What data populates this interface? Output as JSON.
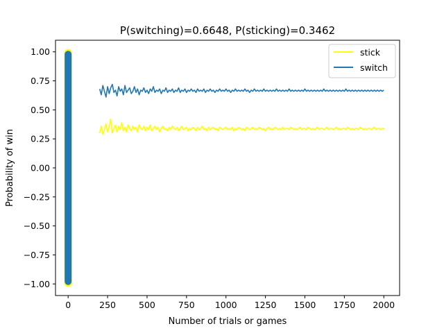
{
  "chart_data": {
    "type": "line",
    "title": "P(switching)=0.6648, P(sticking)=0.3462",
    "xlabel": "Number of trials or games",
    "ylabel": "Probability of win",
    "xlim": [
      -80,
      2100
    ],
    "ylim": [
      -1.1,
      1.1
    ],
    "x_ticks": [
      0,
      250,
      500,
      750,
      1000,
      1250,
      1500,
      1750,
      2000
    ],
    "y_ticks": [
      -1.0,
      -0.75,
      -0.5,
      -0.25,
      0.0,
      0.25,
      0.5,
      0.75,
      1.0
    ],
    "y_tick_labels": [
      "−1.00",
      "−0.75",
      "−0.50",
      "−0.25",
      "0.00",
      "0.25",
      "0.50",
      "0.75",
      "1.00"
    ],
    "legend_position": "top-right",
    "series": [
      {
        "name": "stick",
        "color": "#ffff00",
        "x_start": 200,
        "x_end": 2000,
        "x_step": 10,
        "values": [
          0.3,
          0.36,
          0.29,
          0.33,
          0.38,
          0.31,
          0.35,
          0.42,
          0.3,
          0.34,
          0.37,
          0.31,
          0.36,
          0.33,
          0.39,
          0.32,
          0.35,
          0.31,
          0.37,
          0.34,
          0.32,
          0.36,
          0.33,
          0.35,
          0.31,
          0.37,
          0.34,
          0.33,
          0.36,
          0.32,
          0.35,
          0.33,
          0.37,
          0.32,
          0.34,
          0.36,
          0.33,
          0.35,
          0.31,
          0.34,
          0.36,
          0.33,
          0.34,
          0.32,
          0.35,
          0.33,
          0.36,
          0.34,
          0.33,
          0.35,
          0.32,
          0.34,
          0.36,
          0.33,
          0.34,
          0.35,
          0.32,
          0.34,
          0.33,
          0.35,
          0.34,
          0.32,
          0.35,
          0.33,
          0.34,
          0.36,
          0.33,
          0.34,
          0.32,
          0.35,
          0.33,
          0.34,
          0.35,
          0.33,
          0.34,
          0.32,
          0.35,
          0.34,
          0.33,
          0.34,
          0.35,
          0.33,
          0.34,
          0.33,
          0.35,
          0.32,
          0.34,
          0.33,
          0.35,
          0.34,
          0.33,
          0.34,
          0.32,
          0.35,
          0.34,
          0.33,
          0.34,
          0.35,
          0.33,
          0.34,
          0.33,
          0.35,
          0.34,
          0.33,
          0.34,
          0.32,
          0.34,
          0.35,
          0.33,
          0.34,
          0.33,
          0.35,
          0.34,
          0.33,
          0.34,
          0.33,
          0.35,
          0.33,
          0.34,
          0.34,
          0.33,
          0.35,
          0.34,
          0.33,
          0.34,
          0.33,
          0.34,
          0.35,
          0.33,
          0.34,
          0.34,
          0.33,
          0.35,
          0.34,
          0.33,
          0.34,
          0.33,
          0.34,
          0.35,
          0.33,
          0.34,
          0.34,
          0.33,
          0.34,
          0.35,
          0.33,
          0.34,
          0.34,
          0.33,
          0.34,
          0.35,
          0.33,
          0.34,
          0.33,
          0.34,
          0.34,
          0.33,
          0.35,
          0.34,
          0.33,
          0.34,
          0.33,
          0.34,
          0.34,
          0.33,
          0.35,
          0.34,
          0.33,
          0.34,
          0.33,
          0.34,
          0.34,
          0.33,
          0.34,
          0.35,
          0.33,
          0.34,
          0.34,
          0.33,
          0.34,
          0.34,
          0.33
        ]
      },
      {
        "name": "switch",
        "color": "#1f77b4",
        "x_start": 200,
        "x_end": 2000,
        "x_step": 10,
        "values": [
          0.68,
          0.63,
          0.71,
          0.66,
          0.61,
          0.7,
          0.64,
          0.69,
          0.72,
          0.65,
          0.67,
          0.62,
          0.7,
          0.66,
          0.68,
          0.63,
          0.71,
          0.65,
          0.67,
          0.69,
          0.64,
          0.66,
          0.7,
          0.65,
          0.68,
          0.63,
          0.67,
          0.66,
          0.69,
          0.65,
          0.67,
          0.64,
          0.68,
          0.66,
          0.7,
          0.65,
          0.67,
          0.66,
          0.68,
          0.64,
          0.67,
          0.66,
          0.69,
          0.65,
          0.67,
          0.66,
          0.68,
          0.65,
          0.67,
          0.66,
          0.69,
          0.65,
          0.67,
          0.66,
          0.68,
          0.65,
          0.67,
          0.66,
          0.68,
          0.66,
          0.67,
          0.65,
          0.68,
          0.66,
          0.67,
          0.66,
          0.68,
          0.65,
          0.67,
          0.66,
          0.68,
          0.66,
          0.67,
          0.65,
          0.67,
          0.66,
          0.68,
          0.66,
          0.67,
          0.66,
          0.68,
          0.66,
          0.67,
          0.65,
          0.67,
          0.66,
          0.68,
          0.66,
          0.67,
          0.66,
          0.67,
          0.66,
          0.68,
          0.66,
          0.67,
          0.65,
          0.67,
          0.66,
          0.68,
          0.66,
          0.67,
          0.66,
          0.67,
          0.66,
          0.68,
          0.66,
          0.67,
          0.66,
          0.67,
          0.66,
          0.67,
          0.66,
          0.68,
          0.66,
          0.67,
          0.66,
          0.67,
          0.66,
          0.67,
          0.66,
          0.68,
          0.66,
          0.67,
          0.66,
          0.67,
          0.66,
          0.67,
          0.66,
          0.67,
          0.66,
          0.68,
          0.66,
          0.67,
          0.66,
          0.67,
          0.66,
          0.67,
          0.66,
          0.67,
          0.66,
          0.67,
          0.66,
          0.68,
          0.66,
          0.67,
          0.66,
          0.67,
          0.66,
          0.67,
          0.66,
          0.67,
          0.66,
          0.67,
          0.66,
          0.67,
          0.66,
          0.68,
          0.66,
          0.67,
          0.66,
          0.67,
          0.66,
          0.67,
          0.66,
          0.67,
          0.66,
          0.67,
          0.66,
          0.67,
          0.66,
          0.67,
          0.66,
          0.67,
          0.66,
          0.67,
          0.66,
          0.67,
          0.66,
          0.67,
          0.66,
          0.67
        ]
      }
    ],
    "scatter_column": {
      "x": 0,
      "y_min": -1.0,
      "y_max": 1.0,
      "color": "#1f77b4",
      "edge_color": "#ffff00"
    }
  }
}
